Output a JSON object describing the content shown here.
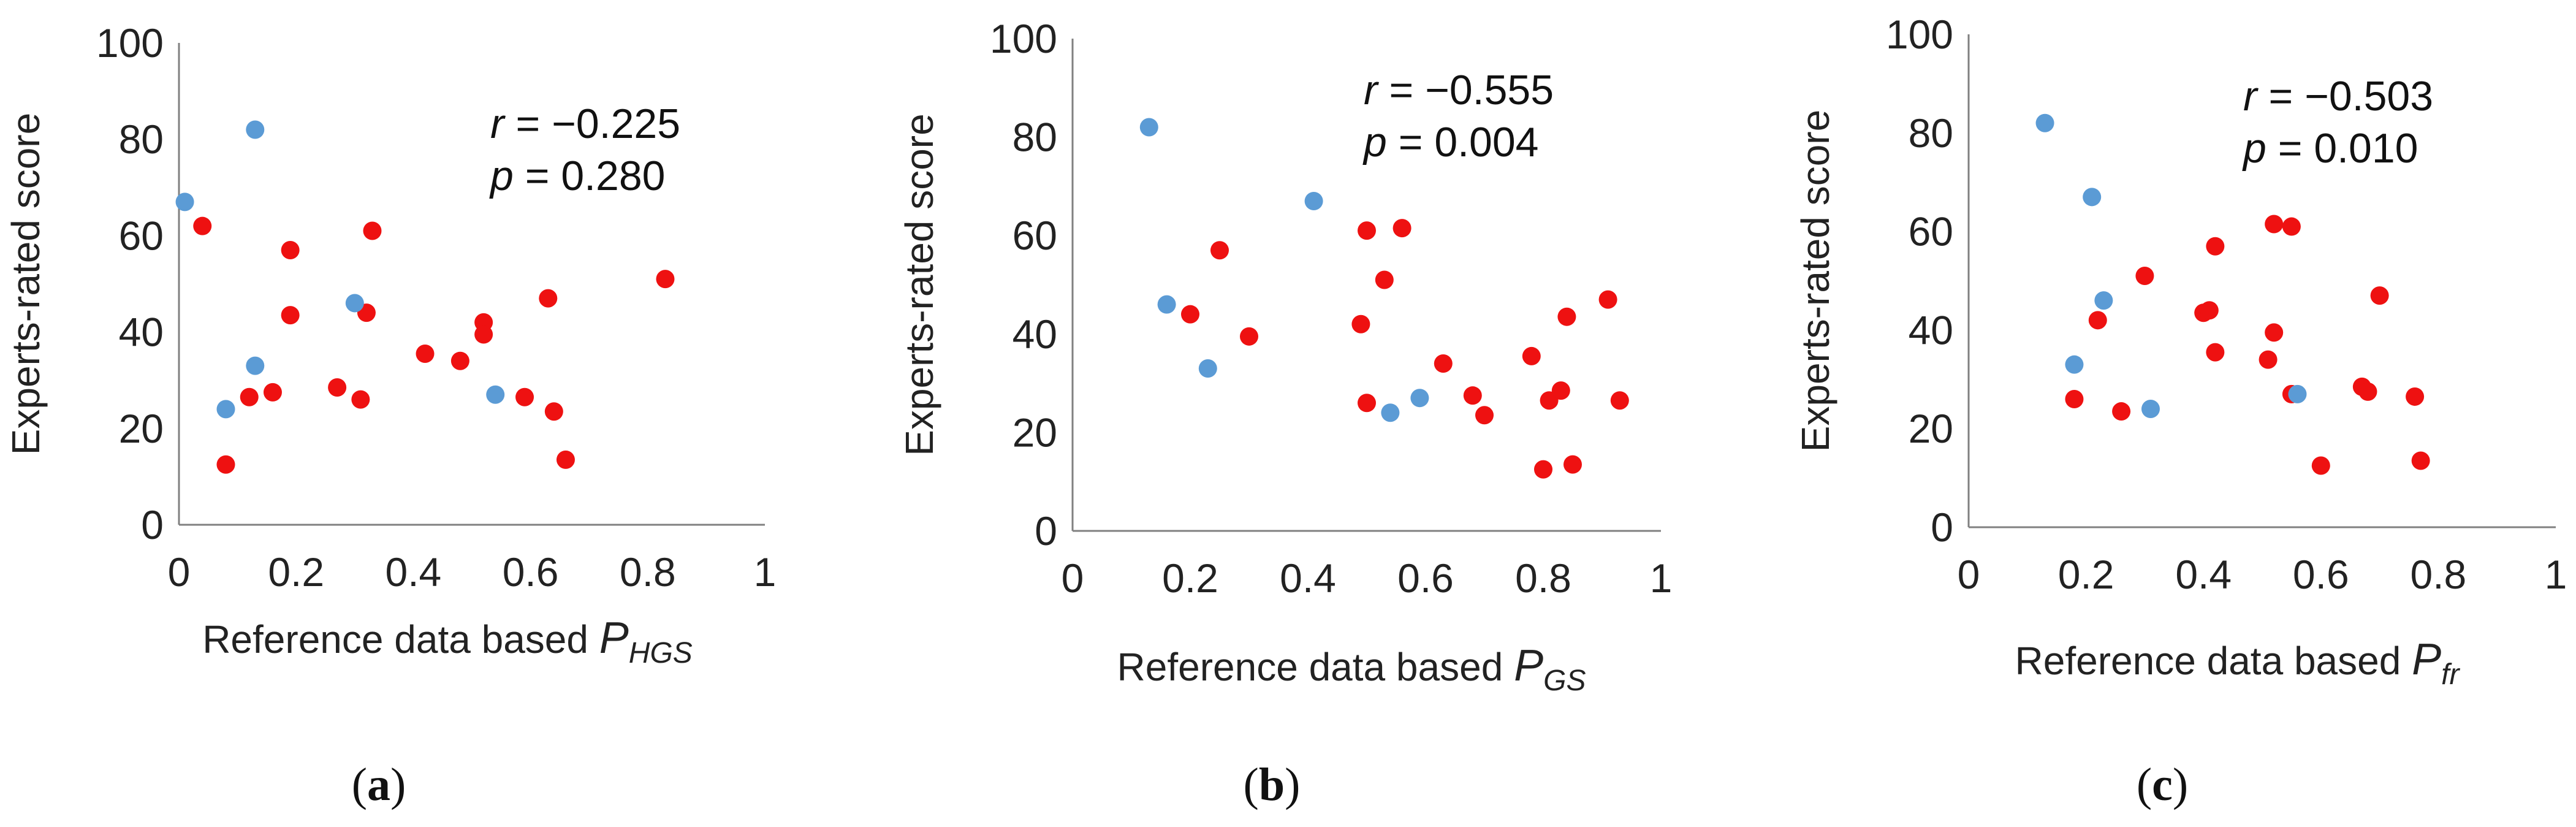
{
  "figure": {
    "colors": {
      "red": "#EE1111",
      "blue": "#5B9BD5",
      "axis": "#808080",
      "text": "#222222"
    }
  },
  "chart_data": [
    {
      "type": "scatter",
      "panel_label": "(a)",
      "panel_letter": "a",
      "xlabel_prefix": "Reference data based ",
      "xlabel_main": "P",
      "xlabel_sub": "HGS",
      "ylabel": "Experts-rated score",
      "xlim": [
        0,
        1
      ],
      "ylim": [
        0,
        100
      ],
      "xticks": [
        "0",
        "0.2",
        "0.4",
        "0.6",
        "0.8",
        "1"
      ],
      "yticks": [
        "0",
        "20",
        "40",
        "60",
        "80",
        "100"
      ],
      "stat_r_label": "r",
      "stat_r_value": " = −0.225",
      "stat_p_label": "p",
      "stat_p_value": " = 0.280",
      "series": [
        {
          "name": "red",
          "color": "#EE1111",
          "points": [
            [
              0.04,
              62
            ],
            [
              0.08,
              12.5
            ],
            [
              0.12,
              26.5
            ],
            [
              0.16,
              27.5
            ],
            [
              0.19,
              57
            ],
            [
              0.19,
              43.5
            ],
            [
              0.27,
              28.5
            ],
            [
              0.31,
              26
            ],
            [
              0.32,
              44
            ],
            [
              0.33,
              61
            ],
            [
              0.42,
              35.5
            ],
            [
              0.48,
              34
            ],
            [
              0.52,
              42
            ],
            [
              0.52,
              39.5
            ],
            [
              0.59,
              26.5
            ],
            [
              0.63,
              47
            ],
            [
              0.64,
              23.5
            ],
            [
              0.66,
              13.5
            ],
            [
              0.83,
              51
            ]
          ]
        },
        {
          "name": "blue",
          "color": "#5B9BD5",
          "points": [
            [
              0.01,
              67
            ],
            [
              0.13,
              82
            ],
            [
              0.08,
              24
            ],
            [
              0.13,
              33
            ],
            [
              0.3,
              46
            ],
            [
              0.54,
              27
            ]
          ]
        }
      ]
    },
    {
      "type": "scatter",
      "panel_label": "(b)",
      "panel_letter": "b",
      "xlabel_prefix": "Reference data based ",
      "xlabel_main": "P",
      "xlabel_sub": "GS",
      "ylabel": "Experts-rated score",
      "xlim": [
        0,
        1
      ],
      "ylim": [
        0,
        100
      ],
      "xticks": [
        "0",
        "0.2",
        "0.4",
        "0.6",
        "0.8",
        "1"
      ],
      "yticks": [
        "0",
        "20",
        "40",
        "60",
        "80",
        "100"
      ],
      "stat_r_label": "r",
      "stat_r_value": " = −0.555",
      "stat_p_label": "p",
      "stat_p_value": " = 0.004",
      "series": [
        {
          "name": "red",
          "color": "#EE1111",
          "points": [
            [
              0.2,
              44
            ],
            [
              0.25,
              57
            ],
            [
              0.3,
              39.5
            ],
            [
              0.49,
              42
            ],
            [
              0.5,
              61
            ],
            [
              0.5,
              26
            ],
            [
              0.53,
              51
            ],
            [
              0.56,
              61.5
            ],
            [
              0.63,
              34
            ],
            [
              0.68,
              27.5
            ],
            [
              0.7,
              23.5
            ],
            [
              0.78,
              35.5
            ],
            [
              0.8,
              12.5
            ],
            [
              0.81,
              26.5
            ],
            [
              0.83,
              28.5
            ],
            [
              0.84,
              43.5
            ],
            [
              0.85,
              13.5
            ],
            [
              0.91,
              47
            ],
            [
              0.93,
              26.5
            ]
          ]
        },
        {
          "name": "blue",
          "color": "#5B9BD5",
          "points": [
            [
              0.13,
              82
            ],
            [
              0.16,
              46
            ],
            [
              0.23,
              33
            ],
            [
              0.41,
              67
            ],
            [
              0.54,
              24
            ],
            [
              0.59,
              27
            ]
          ]
        }
      ]
    },
    {
      "type": "scatter",
      "panel_label": "(c)",
      "panel_letter": "c",
      "xlabel_prefix": "Reference data based ",
      "xlabel_main": "P",
      "xlabel_sub": "fr",
      "ylabel": "Experts-rated score",
      "xlim": [
        0,
        1
      ],
      "ylim": [
        0,
        100
      ],
      "xticks": [
        "0",
        "0.2",
        "0.4",
        "0.6",
        "0.8",
        "1"
      ],
      "yticks": [
        "0",
        "20",
        "40",
        "60",
        "80",
        "100"
      ],
      "stat_r_label": "r",
      "stat_r_value": " = −0.503",
      "stat_p_label": "p",
      "stat_p_value": " = 0.010",
      "series": [
        {
          "name": "red",
          "color": "#EE1111",
          "points": [
            [
              0.18,
              26
            ],
            [
              0.22,
              42
            ],
            [
              0.26,
              23.5
            ],
            [
              0.3,
              51
            ],
            [
              0.4,
              43.5
            ],
            [
              0.41,
              44
            ],
            [
              0.42,
              57
            ],
            [
              0.42,
              35.5
            ],
            [
              0.51,
              34
            ],
            [
              0.52,
              39.5
            ],
            [
              0.52,
              61.5
            ],
            [
              0.55,
              27
            ],
            [
              0.55,
              61
            ],
            [
              0.6,
              12.5
            ],
            [
              0.67,
              28.5
            ],
            [
              0.68,
              27.5
            ],
            [
              0.7,
              47
            ],
            [
              0.76,
              26.5
            ],
            [
              0.77,
              13.5
            ]
          ]
        },
        {
          "name": "blue",
          "color": "#5B9BD5",
          "points": [
            [
              0.13,
              82
            ],
            [
              0.21,
              67
            ],
            [
              0.23,
              46
            ],
            [
              0.18,
              33
            ],
            [
              0.31,
              24
            ],
            [
              0.56,
              27
            ]
          ]
        }
      ]
    }
  ]
}
